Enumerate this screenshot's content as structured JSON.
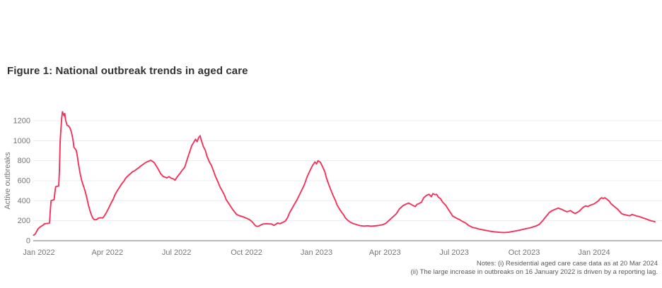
{
  "figure": {
    "title": "Figure 1: National outbreak trends in aged care"
  },
  "notes": {
    "line1": "Notes: (i) Residential aged care case data as at 20 Mar 2024",
    "line2": "(ii) The large increase in outbreaks on 16 January 2022 is driven by a reporting lag."
  },
  "colors": {
    "line": "#f2335b",
    "grid": "#ececec",
    "axis": "#8f8f8f",
    "tick_text": "#767676",
    "title_text": "#333333",
    "notes_text": "#595959",
    "background": "#ffffff"
  },
  "chart_data": {
    "type": "line",
    "title": "Figure 1: National outbreak trends in aged care",
    "xlabel": "",
    "ylabel": "Active outbreaks",
    "ylim": [
      0,
      1350
    ],
    "grid": "horizontal",
    "legend": "none",
    "x_unit": "days since 2022-01-01",
    "x_range_dates": [
      "2021-12-25",
      "2024-03-20"
    ],
    "yticks": [
      0,
      200,
      400,
      600,
      800,
      1000,
      1200
    ],
    "xticks": [
      {
        "label": "Jan 2022",
        "day": 0
      },
      {
        "label": "Apr 2022",
        "day": 90
      },
      {
        "label": "Jul 2022",
        "day": 181
      },
      {
        "label": "Oct 2022",
        "day": 273
      },
      {
        "label": "Jan 2023",
        "day": 365
      },
      {
        "label": "Apr 2023",
        "day": 455
      },
      {
        "label": "Jul 2023",
        "day": 546
      },
      {
        "label": "Oct 2023",
        "day": 638
      },
      {
        "label": "Jan 2024",
        "day": 730
      }
    ],
    "series": [
      {
        "name": "Active outbreaks",
        "color": "#f2335b",
        "points": [
          [
            -7,
            55
          ],
          [
            -5,
            65
          ],
          [
            -1,
            120
          ],
          [
            2,
            140
          ],
          [
            6,
            158
          ],
          [
            7,
            168
          ],
          [
            11,
            172
          ],
          [
            14,
            178
          ],
          [
            15,
            300
          ],
          [
            16,
            400
          ],
          [
            20,
            410
          ],
          [
            21,
            480
          ],
          [
            22,
            540
          ],
          [
            26,
            548
          ],
          [
            27,
            700
          ],
          [
            28,
            1000
          ],
          [
            29,
            1120
          ],
          [
            30,
            1230
          ],
          [
            31,
            1290
          ],
          [
            33,
            1250
          ],
          [
            34,
            1272
          ],
          [
            35,
            1210
          ],
          [
            37,
            1155
          ],
          [
            39,
            1148
          ],
          [
            41,
            1125
          ],
          [
            43,
            1080
          ],
          [
            45,
            1000
          ],
          [
            46,
            935
          ],
          [
            49,
            905
          ],
          [
            50,
            870
          ],
          [
            52,
            770
          ],
          [
            54,
            680
          ],
          [
            56,
            610
          ],
          [
            58,
            560
          ],
          [
            59,
            540
          ],
          [
            61,
            490
          ],
          [
            63,
            430
          ],
          [
            65,
            360
          ],
          [
            67,
            305
          ],
          [
            69,
            258
          ],
          [
            71,
            225
          ],
          [
            73,
            210
          ],
          [
            76,
            212
          ],
          [
            78,
            225
          ],
          [
            81,
            230
          ],
          [
            84,
            228
          ],
          [
            86,
            248
          ],
          [
            89,
            285
          ],
          [
            92,
            330
          ],
          [
            95,
            378
          ],
          [
            98,
            420
          ],
          [
            100,
            458
          ],
          [
            103,
            500
          ],
          [
            106,
            535
          ],
          [
            109,
            570
          ],
          [
            112,
            598
          ],
          [
            114,
            625
          ],
          [
            117,
            648
          ],
          [
            120,
            668
          ],
          [
            123,
            688
          ],
          [
            126,
            700
          ],
          [
            128,
            712
          ],
          [
            131,
            728
          ],
          [
            134,
            748
          ],
          [
            137,
            763
          ],
          [
            139,
            775
          ],
          [
            142,
            788
          ],
          [
            145,
            798
          ],
          [
            147,
            805
          ],
          [
            150,
            790
          ],
          [
            152,
            778
          ],
          [
            154,
            752
          ],
          [
            157,
            715
          ],
          [
            160,
            672
          ],
          [
            163,
            645
          ],
          [
            165,
            638
          ],
          [
            168,
            628
          ],
          [
            171,
            640
          ],
          [
            174,
            625
          ],
          [
            177,
            618
          ],
          [
            179,
            605
          ],
          [
            182,
            640
          ],
          [
            185,
            668
          ],
          [
            188,
            700
          ],
          [
            191,
            728
          ],
          [
            192,
            742
          ],
          [
            194,
            790
          ],
          [
            197,
            860
          ],
          [
            199,
            905
          ],
          [
            201,
            950
          ],
          [
            204,
            990
          ],
          [
            206,
            1015
          ],
          [
            208,
            990
          ],
          [
            210,
            1030
          ],
          [
            212,
            1050
          ],
          [
            213,
            1020
          ],
          [
            216,
            945
          ],
          [
            219,
            900
          ],
          [
            221,
            845
          ],
          [
            224,
            790
          ],
          [
            227,
            750
          ],
          [
            230,
            690
          ],
          [
            232,
            645
          ],
          [
            235,
            595
          ],
          [
            238,
            540
          ],
          [
            241,
            500
          ],
          [
            244,
            455
          ],
          [
            246,
            415
          ],
          [
            249,
            380
          ],
          [
            252,
            345
          ],
          [
            255,
            310
          ],
          [
            258,
            282
          ],
          [
            260,
            262
          ],
          [
            263,
            252
          ],
          [
            266,
            245
          ],
          [
            270,
            235
          ],
          [
            274,
            222
          ],
          [
            278,
            205
          ],
          [
            281,
            185
          ],
          [
            283,
            165
          ],
          [
            285,
            148
          ],
          [
            287,
            143
          ],
          [
            289,
            146
          ],
          [
            292,
            158
          ],
          [
            295,
            167
          ],
          [
            299,
            170
          ],
          [
            302,
            168
          ],
          [
            306,
            167
          ],
          [
            309,
            153
          ],
          [
            312,
            167
          ],
          [
            314,
            177
          ],
          [
            317,
            170
          ],
          [
            321,
            184
          ],
          [
            324,
            196
          ],
          [
            327,
            231
          ],
          [
            330,
            285
          ],
          [
            333,
            325
          ],
          [
            336,
            365
          ],
          [
            339,
            403
          ],
          [
            344,
            480
          ],
          [
            349,
            560
          ],
          [
            353,
            645
          ],
          [
            357,
            710
          ],
          [
            360,
            755
          ],
          [
            363,
            788
          ],
          [
            365,
            768
          ],
          [
            367,
            800
          ],
          [
            370,
            785
          ],
          [
            373,
            740
          ],
          [
            376,
            690
          ],
          [
            378,
            628
          ],
          [
            381,
            565
          ],
          [
            384,
            505
          ],
          [
            387,
            450
          ],
          [
            390,
            400
          ],
          [
            392,
            358
          ],
          [
            395,
            320
          ],
          [
            398,
            285
          ],
          [
            401,
            255
          ],
          [
            403,
            228
          ],
          [
            406,
            205
          ],
          [
            409,
            188
          ],
          [
            412,
            175
          ],
          [
            416,
            165
          ],
          [
            419,
            158
          ],
          [
            423,
            150
          ],
          [
            428,
            146
          ],
          [
            432,
            150
          ],
          [
            437,
            145
          ],
          [
            442,
            148
          ],
          [
            446,
            152
          ],
          [
            451,
            158
          ],
          [
            456,
            172
          ],
          [
            460,
            200
          ],
          [
            465,
            235
          ],
          [
            470,
            270
          ],
          [
            474,
            318
          ],
          [
            479,
            352
          ],
          [
            484,
            370
          ],
          [
            486,
            377
          ],
          [
            489,
            365
          ],
          [
            492,
            352
          ],
          [
            495,
            342
          ],
          [
            497,
            362
          ],
          [
            500,
            372
          ],
          [
            503,
            385
          ],
          [
            506,
            430
          ],
          [
            510,
            455
          ],
          [
            513,
            464
          ],
          [
            516,
            440
          ],
          [
            518,
            470
          ],
          [
            521,
            460
          ],
          [
            523,
            464
          ],
          [
            525,
            438
          ],
          [
            528,
            420
          ],
          [
            531,
            385
          ],
          [
            535,
            354
          ],
          [
            538,
            318
          ],
          [
            541,
            283
          ],
          [
            544,
            247
          ],
          [
            549,
            225
          ],
          [
            553,
            212
          ],
          [
            556,
            196
          ],
          [
            561,
            177
          ],
          [
            565,
            153
          ],
          [
            570,
            134
          ],
          [
            575,
            125
          ],
          [
            579,
            116
          ],
          [
            584,
            108
          ],
          [
            589,
            101
          ],
          [
            593,
            95
          ],
          [
            598,
            90
          ],
          [
            603,
            86
          ],
          [
            607,
            83
          ],
          [
            612,
            82
          ],
          [
            617,
            84
          ],
          [
            621,
            90
          ],
          [
            626,
            97
          ],
          [
            631,
            104
          ],
          [
            635,
            111
          ],
          [
            640,
            119
          ],
          [
            645,
            127
          ],
          [
            649,
            136
          ],
          [
            654,
            148
          ],
          [
            658,
            163
          ],
          [
            660,
            180
          ],
          [
            663,
            205
          ],
          [
            666,
            235
          ],
          [
            669,
            262
          ],
          [
            671,
            282
          ],
          [
            674,
            298
          ],
          [
            677,
            308
          ],
          [
            680,
            318
          ],
          [
            683,
            326
          ],
          [
            685,
            320
          ],
          [
            688,
            312
          ],
          [
            691,
            300
          ],
          [
            694,
            290
          ],
          [
            697,
            295
          ],
          [
            699,
            302
          ],
          [
            702,
            284
          ],
          [
            705,
            272
          ],
          [
            708,
            284
          ],
          [
            711,
            298
          ],
          [
            713,
            315
          ],
          [
            716,
            336
          ],
          [
            719,
            348
          ],
          [
            722,
            342
          ],
          [
            724,
            352
          ],
          [
            727,
            360
          ],
          [
            730,
            368
          ],
          [
            733,
            384
          ],
          [
            736,
            402
          ],
          [
            738,
            420
          ],
          [
            740,
            430
          ],
          [
            742,
            420
          ],
          [
            744,
            430
          ],
          [
            747,
            415
          ],
          [
            750,
            395
          ],
          [
            752,
            372
          ],
          [
            755,
            352
          ],
          [
            758,
            333
          ],
          [
            761,
            315
          ],
          [
            764,
            290
          ],
          [
            766,
            272
          ],
          [
            769,
            262
          ],
          [
            772,
            257
          ],
          [
            775,
            252
          ],
          [
            777,
            250
          ],
          [
            780,
            262
          ],
          [
            783,
            255
          ],
          [
            786,
            247
          ],
          [
            789,
            242
          ],
          [
            791,
            237
          ],
          [
            794,
            229
          ],
          [
            797,
            221
          ],
          [
            800,
            213
          ],
          [
            802,
            206
          ],
          [
            805,
            199
          ],
          [
            808,
            194
          ],
          [
            810,
            189
          ]
        ]
      }
    ]
  }
}
